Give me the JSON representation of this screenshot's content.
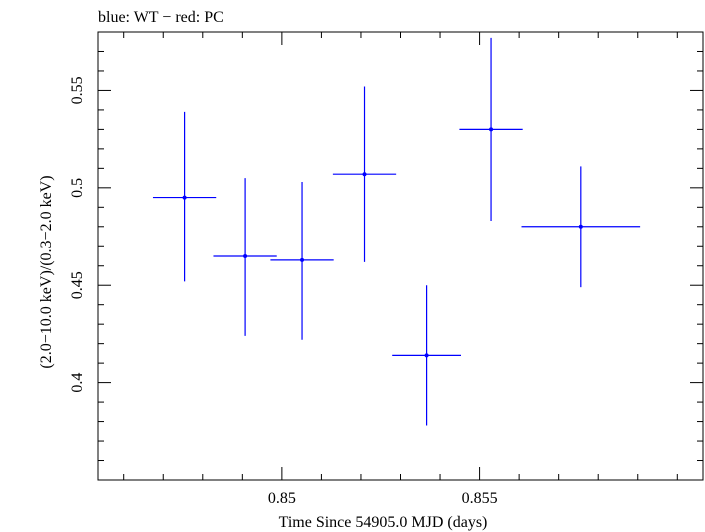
{
  "chart_data": {
    "type": "scatter",
    "title": "blue: WT − red: PC",
    "xlabel": "Time Since 54905.0 MJD (days)",
    "ylabel": "(2.0−10.0 keV)/(0.3−2.0 keV)",
    "xlim": [
      0.84535,
      0.86065
    ],
    "ylim": [
      0.35,
      0.58
    ],
    "x_ticks": [
      {
        "value": 0.85,
        "label": "0.85"
      },
      {
        "value": 0.855,
        "label": "0.855"
      }
    ],
    "y_ticks": [
      {
        "value": 0.4,
        "label": "0.4"
      },
      {
        "value": 0.45,
        "label": "0.45"
      },
      {
        "value": 0.5,
        "label": "0.5"
      },
      {
        "value": 0.55,
        "label": "0.55"
      }
    ],
    "grid": false,
    "series": [
      {
        "color": "#0000ff",
        "points": [
          {
            "x": 0.84754,
            "xerr": 0.0008,
            "y": 0.495,
            "yerr_low": 0.043,
            "yerr_high": 0.044
          },
          {
            "x": 0.84907,
            "xerr": 0.0008,
            "y": 0.465,
            "yerr_low": 0.041,
            "yerr_high": 0.04
          },
          {
            "x": 0.85051,
            "xerr": 0.0008,
            "y": 0.463,
            "yerr_low": 0.041,
            "yerr_high": 0.04
          },
          {
            "x": 0.85209,
            "xerr": 0.0008,
            "y": 0.507,
            "yerr_low": 0.045,
            "yerr_high": 0.045
          },
          {
            "x": 0.85366,
            "xerr": 0.00087,
            "y": 0.414,
            "yerr_low": 0.036,
            "yerr_high": 0.036
          },
          {
            "x": 0.85529,
            "xerr": 0.0008,
            "y": 0.53,
            "yerr_low": 0.047,
            "yerr_high": 0.047
          },
          {
            "x": 0.85756,
            "xerr": 0.0015,
            "y": 0.48,
            "yerr_low": 0.031,
            "yerr_high": 0.031
          }
        ]
      }
    ]
  }
}
